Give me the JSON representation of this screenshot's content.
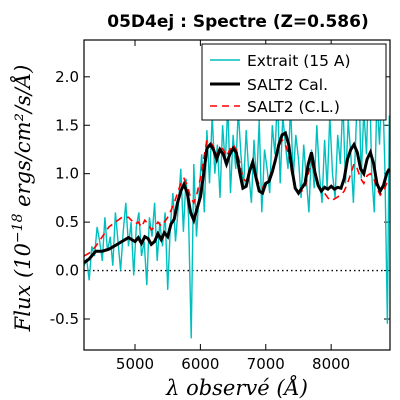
{
  "chart_data": {
    "type": "line",
    "title": "05D4ej : Spectre (Z=0.586)",
    "xlabel": "λ observé (Å)",
    "ylabel": "Flux (10^-18 ergs/cm²/s/Å)",
    "ylabel_parts": {
      "base": "Flux (10",
      "exp": "−18",
      "rest": " ergs/cm²/s/Å)"
    },
    "xlim": [
      4220,
      8900
    ],
    "ylim": [
      -0.82,
      2.38
    ],
    "x_ticks": [
      5000,
      6000,
      7000,
      8000
    ],
    "x_tick_labels": [
      "5000",
      "6000",
      "7000",
      "8000"
    ],
    "y_ticks": [
      -0.5,
      0.0,
      0.5,
      1.0,
      1.5,
      2.0
    ],
    "y_tick_labels": [
      "-0.5",
      "0.0",
      "0.5",
      "1.0",
      "1.5",
      "2.0"
    ],
    "grid": false,
    "legend_position": "top-right",
    "zero_line": {
      "y": 0.0,
      "style": "dotted",
      "color": "#000000"
    },
    "series": [
      {
        "name": "Extrait (15 A)",
        "style": "solid-thin",
        "color": "#00bfbf",
        "x": [
          4220,
          4260,
          4300,
          4340,
          4380,
          4420,
          4460,
          4500,
          4540,
          4580,
          4620,
          4660,
          4700,
          4740,
          4780,
          4820,
          4860,
          4900,
          4940,
          4980,
          5020,
          5060,
          5100,
          5140,
          5180,
          5220,
          5260,
          5300,
          5340,
          5380,
          5420,
          5460,
          5500,
          5540,
          5580,
          5620,
          5660,
          5700,
          5740,
          5780,
          5820,
          5860,
          5900,
          5940,
          5980,
          6020,
          6060,
          6100,
          6140,
          6180,
          6220,
          6260,
          6300,
          6340,
          6380,
          6420,
          6460,
          6500,
          6540,
          6580,
          6620,
          6660,
          6700,
          6740,
          6780,
          6820,
          6860,
          6900,
          6940,
          6980,
          7020,
          7060,
          7100,
          7140,
          7180,
          7220,
          7260,
          7300,
          7340,
          7380,
          7420,
          7460,
          7500,
          7540,
          7580,
          7620,
          7660,
          7700,
          7740,
          7780,
          7820,
          7860,
          7900,
          7940,
          7980,
          8020,
          8060,
          8100,
          8140,
          8180,
          8220,
          8260,
          8300,
          8340,
          8380,
          8420,
          8460,
          8500,
          8540,
          8580,
          8620,
          8660,
          8700,
          8740,
          8780,
          8820,
          8860,
          8890
        ],
        "y": [
          0.05,
          0.12,
          -0.1,
          0.25,
          0.15,
          0.45,
          0.3,
          0.1,
          0.55,
          0.2,
          0.35,
          0.05,
          0.6,
          0.3,
          0.0,
          0.4,
          0.7,
          0.25,
          0.5,
          -0.05,
          0.45,
          0.6,
          0.15,
          0.3,
          -0.15,
          0.55,
          0.35,
          0.7,
          0.1,
          0.5,
          0.25,
          0.6,
          -0.2,
          0.45,
          0.8,
          0.3,
          0.65,
          1.05,
          0.4,
          0.95,
          0.55,
          -0.7,
          1.1,
          0.35,
          0.8,
          1.2,
          0.6,
          1.45,
          0.9,
          1.6,
          1.0,
          1.3,
          0.75,
          1.5,
          1.1,
          1.7,
          0.8,
          1.4,
          1.05,
          1.65,
          1.2,
          0.85,
          1.45,
          1.0,
          0.7,
          1.35,
          0.9,
          1.55,
          0.6,
          1.25,
          1.05,
          0.8,
          1.5,
          1.2,
          1.8,
          0.9,
          1.6,
          1.3,
          1.05,
          1.7,
          0.95,
          1.4,
          1.15,
          0.75,
          1.3,
          0.95,
          0.6,
          1.25,
          0.85,
          1.5,
          1.0,
          0.7,
          1.35,
          0.85,
          1.6,
          1.0,
          0.75,
          1.4,
          1.1,
          1.75,
          0.9,
          1.55,
          1.2,
          0.7,
          1.45,
          2.1,
          0.95,
          1.65,
          1.2,
          2.2,
          1.0,
          0.6,
          1.8,
          1.3,
          2.05,
          1.1,
          -0.55,
          1.6
        ]
      },
      {
        "name": "SALT2 Cal.",
        "style": "solid-thick",
        "color": "#000000",
        "x": [
          4220,
          4300,
          4400,
          4500,
          4600,
          4700,
          4800,
          4900,
          5000,
          5050,
          5100,
          5150,
          5200,
          5250,
          5300,
          5350,
          5400,
          5450,
          5500,
          5550,
          5600,
          5650,
          5700,
          5750,
          5800,
          5850,
          5900,
          5950,
          6000,
          6050,
          6100,
          6150,
          6200,
          6250,
          6300,
          6350,
          6400,
          6450,
          6500,
          6550,
          6600,
          6650,
          6700,
          6750,
          6800,
          6850,
          6900,
          6950,
          7000,
          7050,
          7100,
          7150,
          7200,
          7250,
          7300,
          7350,
          7400,
          7450,
          7500,
          7550,
          7600,
          7650,
          7700,
          7750,
          7800,
          7850,
          7900,
          7950,
          8000,
          8050,
          8100,
          8150,
          8200,
          8250,
          8300,
          8350,
          8400,
          8450,
          8500,
          8550,
          8600,
          8650,
          8700,
          8750,
          8800,
          8850,
          8890
        ],
        "y": [
          0.08,
          0.12,
          0.2,
          0.2,
          0.22,
          0.26,
          0.3,
          0.34,
          0.3,
          0.34,
          0.28,
          0.35,
          0.33,
          0.27,
          0.3,
          0.38,
          0.32,
          0.39,
          0.35,
          0.48,
          0.53,
          0.7,
          0.82,
          0.89,
          0.8,
          0.6,
          0.52,
          0.64,
          0.76,
          1.0,
          1.26,
          1.3,
          1.25,
          1.15,
          1.25,
          1.2,
          1.1,
          1.2,
          1.26,
          1.22,
          1.02,
          0.85,
          0.87,
          1.02,
          1.12,
          0.96,
          0.82,
          0.8,
          0.9,
          0.92,
          1.02,
          1.15,
          1.3,
          1.4,
          1.42,
          1.3,
          1.05,
          0.85,
          0.8,
          0.85,
          0.9,
          1.1,
          1.22,
          1.02,
          0.88,
          0.82,
          0.86,
          0.84,
          0.87,
          0.84,
          0.86,
          0.85,
          0.95,
          1.15,
          1.25,
          1.3,
          1.22,
          1.05,
          1.0,
          1.15,
          1.22,
          1.1,
          0.9,
          0.82,
          0.88,
          1.0,
          1.05
        ]
      },
      {
        "name": "SALT2 (C.L.)",
        "style": "dashed",
        "color": "#ff0000",
        "x": [
          4220,
          4300,
          4400,
          4500,
          4600,
          4700,
          4800,
          4900,
          5000,
          5050,
          5100,
          5150,
          5200,
          5250,
          5300,
          5350,
          5400,
          5450,
          5500,
          5550,
          5600,
          5650,
          5700,
          5750,
          5800,
          5850,
          5900,
          5950,
          6000,
          6050,
          6100,
          6150,
          6200,
          6250,
          6300,
          6350,
          6400,
          6450,
          6500,
          6550,
          6600,
          6650,
          6700,
          6750,
          6800,
          6850,
          6900,
          6950,
          7000,
          7050,
          7100,
          7150,
          7200,
          7250,
          7300,
          7350,
          7400,
          7450,
          7500,
          7550,
          7600,
          7650,
          7700,
          7750,
          7800,
          7850,
          7900,
          7950,
          8000,
          8050,
          8100,
          8150,
          8200,
          8250,
          8300,
          8350,
          8400,
          8450,
          8500,
          8550,
          8600,
          8650,
          8700,
          8750,
          8800,
          8850,
          8890
        ],
        "y": [
          0.15,
          0.18,
          0.25,
          0.35,
          0.45,
          0.5,
          0.55,
          0.55,
          0.48,
          0.5,
          0.45,
          0.52,
          0.48,
          0.42,
          0.45,
          0.5,
          0.46,
          0.5,
          0.55,
          0.62,
          0.7,
          0.8,
          0.9,
          0.95,
          0.88,
          0.75,
          0.7,
          0.8,
          0.95,
          1.15,
          1.35,
          1.33,
          1.28,
          1.2,
          1.28,
          1.25,
          1.18,
          1.25,
          1.3,
          1.25,
          1.12,
          0.95,
          0.92,
          1.02,
          1.1,
          0.98,
          0.88,
          0.85,
          0.92,
          0.95,
          1.05,
          1.12,
          1.28,
          1.35,
          1.3,
          1.2,
          1.0,
          0.85,
          0.8,
          0.82,
          0.85,
          1.0,
          1.12,
          1.0,
          0.88,
          0.82,
          0.8,
          0.75,
          0.72,
          0.74,
          0.76,
          0.78,
          0.82,
          0.9,
          1.0,
          1.1,
          1.05,
          0.95,
          0.9,
          0.98,
          1.0,
          0.95,
          0.85,
          0.78,
          0.82,
          0.9,
          0.95
        ]
      }
    ]
  }
}
